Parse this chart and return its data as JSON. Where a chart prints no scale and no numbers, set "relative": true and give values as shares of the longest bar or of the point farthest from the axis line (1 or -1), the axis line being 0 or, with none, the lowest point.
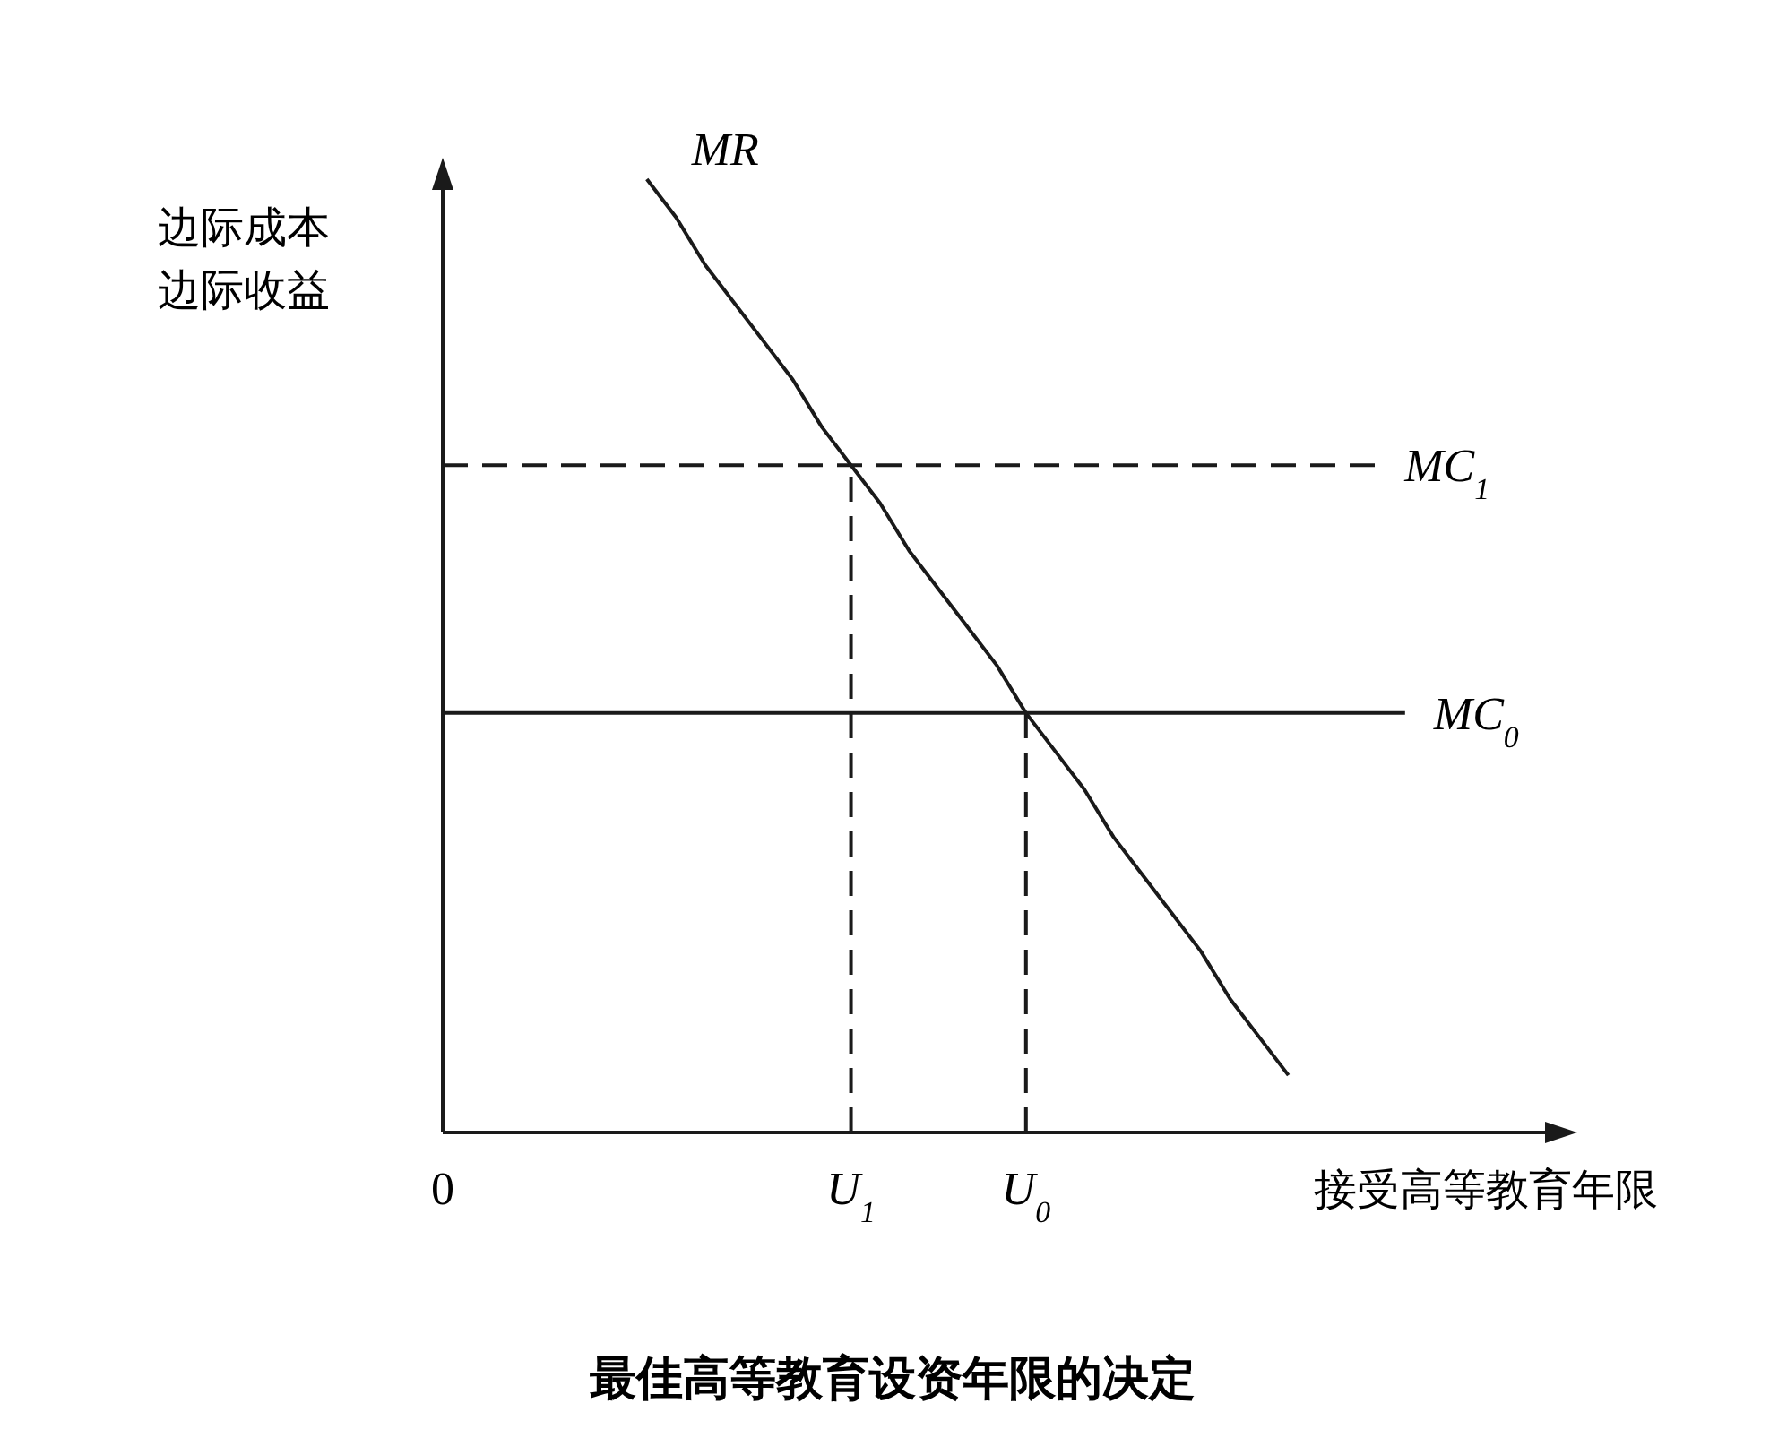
{
  "chart_data": {
    "type": "line",
    "title": "最佳高等教育设资年限的决定",
    "xlabel": "接受高等教育年限",
    "ylabel": "边际成本边际收益",
    "relative": true,
    "categories": [
      "0",
      null,
      null,
      null,
      null,
      null,
      null,
      null,
      null,
      null,
      null,
      null,
      null,
      null,
      "U$_{1}$",
      null,
      null,
      null,
      null,
      null,
      "U$_{0}$",
      null,
      null,
      null,
      null,
      null,
      null,
      null,
      null,
      null,
      null,
      null,
      null,
      null,
      null,
      null,
      null,
      null,
      null
    ],
    "series": [
      {
        "name": "MR",
        "color": "#1a1a1a",
        "line_style": "solid",
        "values": [
          null,
          null,
          null,
          null,
          null,
          null,
          null,
          1,
          0.96,
          0.91,
          0.87,
          0.83,
          0.79,
          0.74,
          0.7,
          0.66,
          0.61,
          0.57,
          0.53,
          0.49,
          0.44,
          0.4,
          0.36,
          0.31,
          0.27,
          0.23,
          0.19,
          0.14,
          0.1,
          0.06,
          null,
          null,
          null,
          null,
          null,
          null,
          null,
          null,
          null
        ]
      },
      {
        "name": "MC$_{1}$",
        "color": "#1a1a1a",
        "line_style": "dashed",
        "values": [
          0.7,
          0.7,
          0.7,
          0.7,
          0.7,
          0.7,
          0.7,
          0.7,
          0.7,
          0.7,
          0.7,
          0.7,
          0.7,
          0.7,
          0.7,
          0.7,
          0.7,
          0.7,
          0.7,
          0.7,
          0.7,
          0.7,
          0.7,
          0.7,
          0.7,
          0.7,
          0.7,
          0.7,
          0.7,
          0.7,
          0.7,
          0.7,
          0.7,
          null,
          null,
          null,
          null,
          null,
          null
        ]
      },
      {
        "name": "MC$_{0}$",
        "color": "#1a1a1a",
        "line_style": "solid",
        "values": [
          0.44,
          0.44,
          0.44,
          0.44,
          0.44,
          0.44,
          0.44,
          0.44,
          0.44,
          0.44,
          0.44,
          0.44,
          0.44,
          0.44,
          0.44,
          0.44,
          0.44,
          0.44,
          0.44,
          0.44,
          0.44,
          0.44,
          0.44,
          0.44,
          0.44,
          0.44,
          0.44,
          0.44,
          0.44,
          0.44,
          0.44,
          0.44,
          0.44,
          0.44,
          null,
          null,
          null,
          null,
          null
        ]
      }
    ],
    "ref_lines": [
      {
        "axis": "x",
        "value": "U$_{1}$",
        "line_style": "dashed",
        "color": "#1a1a1a"
      },
      {
        "axis": "x",
        "value": "U$_{0}$",
        "line_style": "dashed",
        "color": "#1a1a1a"
      }
    ]
  }
}
